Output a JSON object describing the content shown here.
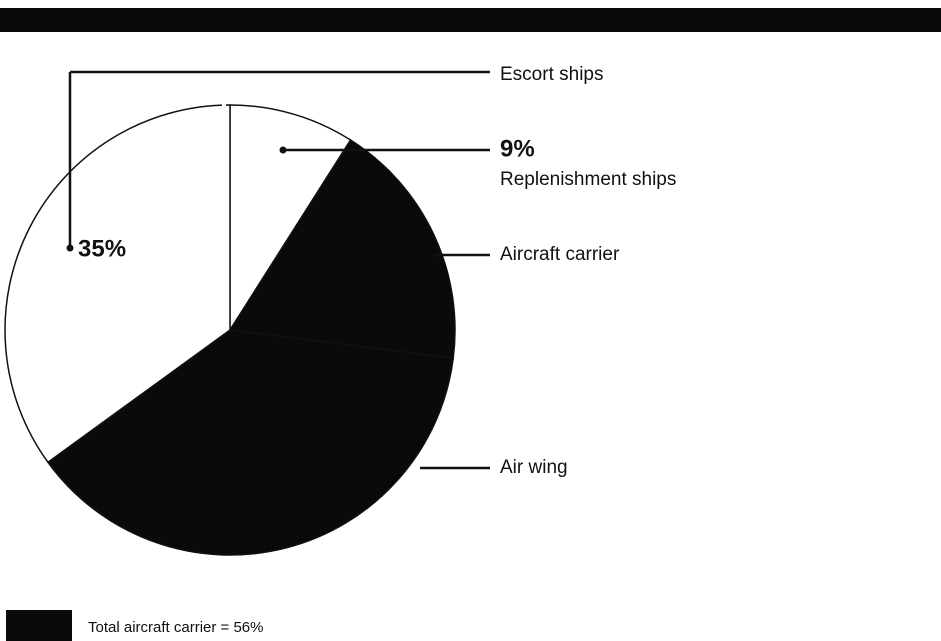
{
  "chart_data": {
    "type": "pie",
    "categories": [
      "Replenishment ships",
      "Aircraft carrier",
      "Air wing",
      "Escort ships"
    ],
    "values": [
      9,
      18,
      38,
      35
    ],
    "value_labels": [
      "9%",
      null,
      null,
      "35%"
    ],
    "colors": [
      "#ffffff",
      "#0a0a0a",
      "#0a0a0a",
      "#ffffff"
    ],
    "legend": {
      "color": "#0a0a0a",
      "label": "Total aircraft carrier = 56%"
    }
  }
}
